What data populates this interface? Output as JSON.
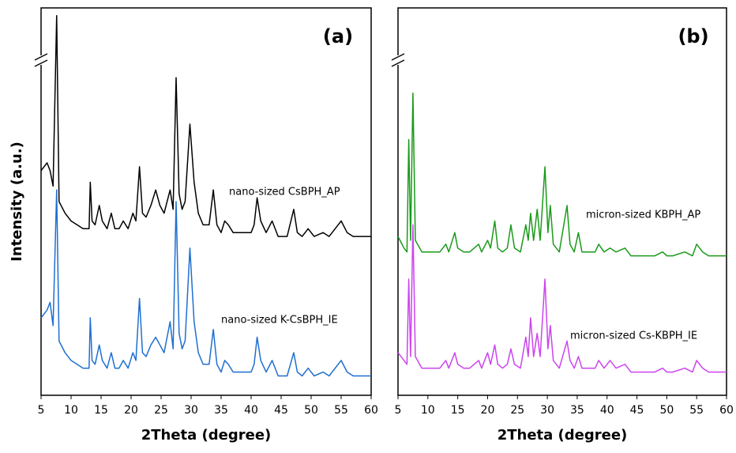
{
  "chart_data": [
    {
      "type": "line",
      "panel_label": "(a)",
      "x_label": "2Theta (degree)",
      "y_label": "Intensity (a.u.)",
      "xlim": [
        5,
        60
      ],
      "xticks": [
        5,
        10,
        15,
        20,
        25,
        30,
        35,
        40,
        45,
        50,
        55,
        60
      ],
      "ylim": [
        0,
        100
      ],
      "x": [
        5,
        6,
        6.5,
        7,
        7.6,
        8,
        9,
        10,
        11,
        12,
        13,
        13.2,
        13.5,
        14,
        14.7,
        15.2,
        16,
        16.7,
        17.3,
        18,
        18.7,
        19.5,
        20.3,
        20.8,
        21.4,
        21.9,
        22.5,
        23.3,
        24.1,
        24.8,
        25.5,
        26.5,
        27,
        27.5,
        28,
        28.5,
        29,
        29.8,
        30.5,
        31.2,
        32,
        33,
        33.7,
        34.3,
        35,
        35.6,
        36.2,
        37,
        38,
        39,
        40,
        40.5,
        41,
        41.6,
        42.5,
        43.5,
        44.5,
        46,
        47.1,
        47.7,
        48.5,
        49.5,
        50.5,
        52,
        53,
        54.5,
        55,
        56,
        57,
        58,
        59,
        60
      ],
      "series": [
        {
          "name": "nano-sized CsBPH_AP",
          "color": "#000000",
          "values": [
            58,
            60,
            58,
            54,
            98,
            50,
            47,
            45,
            44,
            43,
            43,
            55,
            45,
            44,
            49,
            45,
            43,
            47,
            43,
            43,
            45,
            43,
            47,
            45,
            59,
            47,
            46,
            49,
            53,
            49,
            47,
            53,
            48,
            82,
            52,
            48,
            50,
            70,
            55,
            47,
            44,
            44,
            53,
            44,
            42,
            45,
            44,
            42,
            42,
            42,
            42,
            44,
            51,
            45,
            42,
            45,
            41,
            41,
            48,
            42,
            41,
            43,
            41,
            42,
            41,
            44,
            45,
            42,
            41,
            41,
            41,
            41
          ]
        },
        {
          "name": "nano-sized K-CsBPH_IE",
          "color": "#1f6fd1",
          "values": [
            20,
            22,
            24,
            18,
            53,
            14,
            11,
            9,
            8,
            7,
            7,
            20,
            9,
            8,
            13,
            9,
            7,
            11,
            7,
            7,
            9,
            7,
            11,
            9,
            25,
            11,
            10,
            13,
            15,
            13,
            11,
            19,
            12,
            50,
            16,
            12,
            14,
            38,
            19,
            11,
            8,
            8,
            17,
            8,
            6,
            9,
            8,
            6,
            6,
            6,
            6,
            8,
            15,
            9,
            6,
            9,
            5,
            5,
            11,
            6,
            5,
            7,
            5,
            6,
            5,
            8,
            9,
            6,
            5,
            5,
            5,
            5
          ]
        }
      ]
    },
    {
      "type": "line",
      "panel_label": "(b)",
      "x_label": "2Theta (degree)",
      "xlim": [
        5,
        60
      ],
      "xticks": [
        5,
        10,
        15,
        20,
        25,
        30,
        35,
        40,
        45,
        50,
        55,
        60
      ],
      "ylim": [
        0,
        100
      ],
      "x": [
        5,
        6,
        6.5,
        6.8,
        7.1,
        7.5,
        7.9,
        9,
        10,
        11,
        12,
        13,
        13.5,
        14.5,
        15,
        16,
        17,
        18.5,
        19,
        20,
        20.5,
        21.2,
        21.7,
        22.5,
        23.3,
        23.9,
        24.5,
        25.5,
        26.4,
        26.8,
        27.2,
        27.7,
        28.3,
        28.8,
        29.6,
        30.1,
        30.5,
        31,
        32,
        33.3,
        33.8,
        34.5,
        35.2,
        35.8,
        37,
        38,
        38.6,
        39.5,
        40.5,
        41.5,
        43,
        44,
        45,
        46.5,
        48,
        49.3,
        50,
        51,
        53,
        54.3,
        55,
        56,
        57,
        58,
        59,
        60
      ],
      "series": [
        {
          "name": "micron-sized KBPH_AP",
          "color": "#1a9a1a",
          "values": [
            41,
            38,
            37,
            66,
            40,
            78,
            40,
            37,
            37,
            37,
            37,
            39,
            37,
            42,
            38,
            37,
            37,
            39,
            37,
            40,
            38,
            45,
            38,
            37,
            38,
            44,
            38,
            37,
            44,
            40,
            47,
            40,
            48,
            40,
            59,
            42,
            49,
            39,
            37,
            49,
            39,
            37,
            42,
            37,
            37,
            37,
            39,
            37,
            38,
            37,
            38,
            36,
            36,
            36,
            36,
            37,
            36,
            36,
            37,
            36,
            39,
            37,
            36,
            36,
            36,
            36
          ]
        },
        {
          "name": "micron-sized Cs-KBPH_IE",
          "color": "#cc44ee",
          "values": [
            11,
            9,
            8,
            30,
            10,
            44,
            10,
            7,
            7,
            7,
            7,
            9,
            7,
            11,
            8,
            7,
            7,
            9,
            7,
            11,
            8,
            13,
            8,
            7,
            8,
            12,
            8,
            7,
            15,
            10,
            20,
            10,
            16,
            10,
            30,
            12,
            18,
            9,
            7,
            14,
            9,
            7,
            10,
            7,
            7,
            7,
            9,
            7,
            9,
            7,
            8,
            6,
            6,
            6,
            6,
            7,
            6,
            6,
            7,
            6,
            9,
            7,
            6,
            6,
            6,
            6
          ]
        }
      ]
    }
  ]
}
